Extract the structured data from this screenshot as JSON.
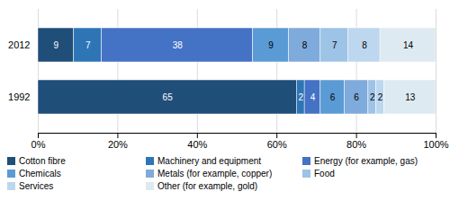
{
  "chart_data": {
    "type": "bar",
    "orientation": "horizontal",
    "stacked": true,
    "categories": [
      "1992",
      "2012"
    ],
    "series": [
      {
        "name": "Cotton fibre",
        "color": "#1f4e79",
        "values": [
          65,
          9
        ]
      },
      {
        "name": "Machinery and equipment",
        "color": "#2e75b6",
        "values": [
          2,
          7
        ]
      },
      {
        "name": "Energy (for example, gas)",
        "color": "#4472c4",
        "values": [
          4,
          38
        ]
      },
      {
        "name": "Chemicals",
        "color": "#5b9bd5",
        "values": [
          6,
          9
        ]
      },
      {
        "name": "Metals (for example, copper)",
        "color": "#7faadc",
        "values": [
          6,
          8
        ]
      },
      {
        "name": "Food",
        "color": "#9dc3e6",
        "values": [
          2,
          7
        ]
      },
      {
        "name": "Services",
        "color": "#bdd7ee",
        "values": [
          2,
          8
        ]
      },
      {
        "name": "Other (for example, gold)",
        "color": "#deeaf1",
        "values": [
          13,
          14
        ]
      }
    ],
    "xlim": [
      0,
      100
    ],
    "xticks": [
      {
        "value": 0,
        "label": "0%"
      },
      {
        "value": 20,
        "label": "20%"
      },
      {
        "value": 40,
        "label": "40%"
      },
      {
        "value": 60,
        "label": "60%"
      },
      {
        "value": 80,
        "label": "80%"
      },
      {
        "value": 100,
        "label": "100%"
      }
    ],
    "grid": true,
    "data_labels": true,
    "legend": "bottom"
  }
}
